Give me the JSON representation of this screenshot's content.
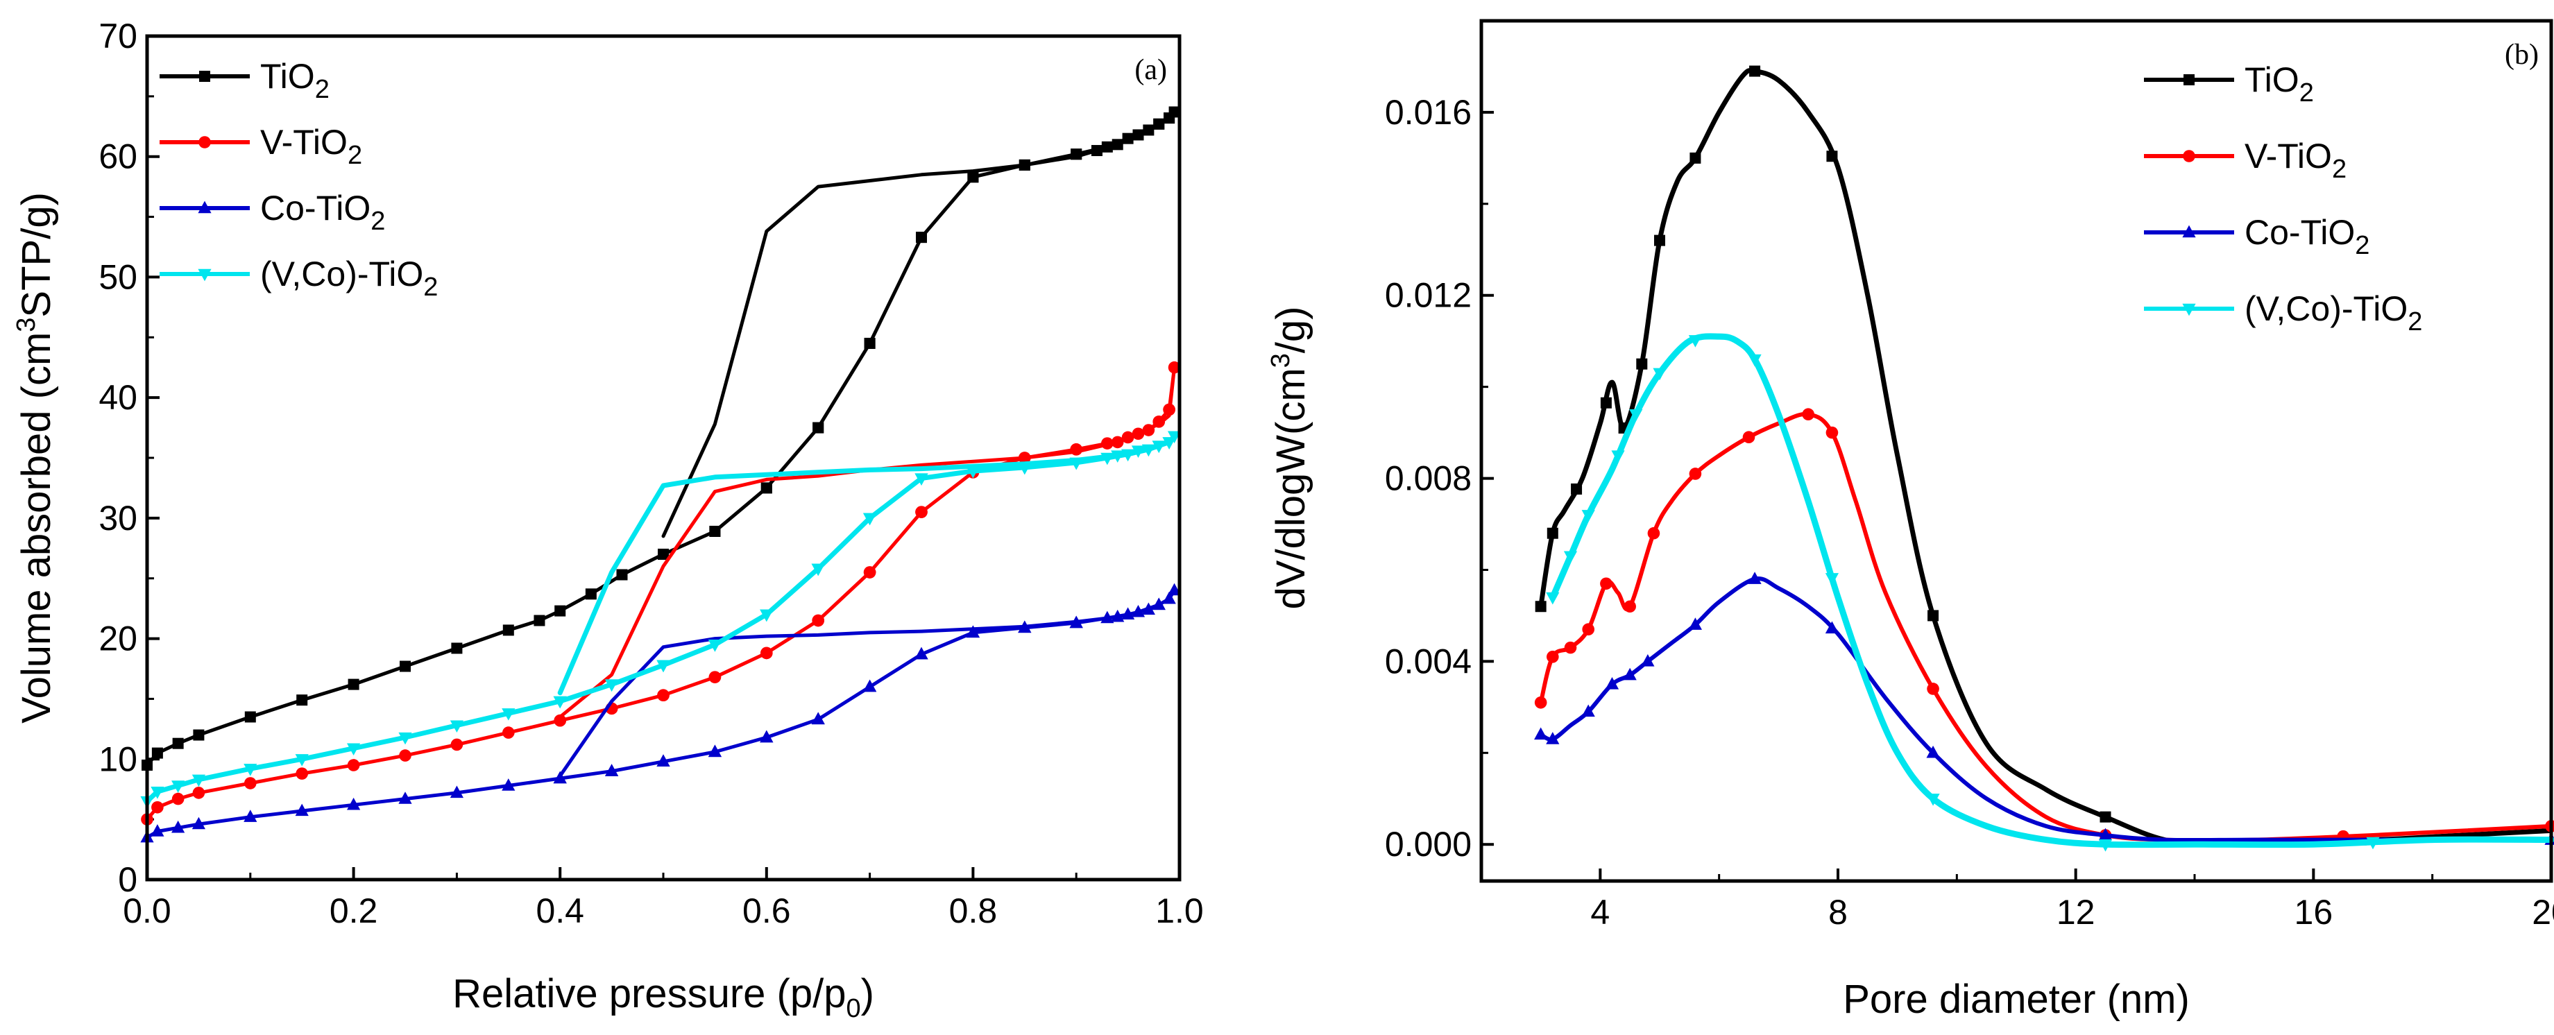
{
  "chart_data": [
    {
      "type": "line",
      "panel_label": "(a)",
      "xlabel": "Relative pressure (p/p",
      "xlabel_sub": "0",
      "xlabel_tail": ")",
      "ylabel": "Volume absorbed (cm",
      "ylabel_sup": "3",
      "ylabel_tail": "STP/g)",
      "xlim": [
        0,
        1.0
      ],
      "ylim": [
        0,
        70
      ],
      "xticks": [
        0.0,
        0.2,
        0.4,
        0.6,
        0.8,
        1.0
      ],
      "xtick_labels": [
        "0.0",
        "0.2",
        "0.4",
        "0.6",
        "0.8",
        "1.0"
      ],
      "yticks": [
        0,
        10,
        20,
        30,
        40,
        50,
        60,
        70
      ],
      "ytick_labels": [
        "0",
        "10",
        "20",
        "30",
        "40",
        "50",
        "60",
        "70"
      ],
      "legend_position": "top-left",
      "series": [
        {
          "name": "TiO",
          "name_sub": "2",
          "name_tail": "",
          "color": "#000000",
          "marker": "square",
          "x": [
            0.0,
            0.01,
            0.03,
            0.05,
            0.1,
            0.15,
            0.2,
            0.25,
            0.3,
            0.35,
            0.38,
            0.4,
            0.43,
            0.46,
            0.5,
            0.55,
            0.6,
            0.65,
            0.7,
            0.75,
            0.8,
            0.85,
            0.9,
            0.93,
            0.95,
            0.97,
            0.98,
            0.99,
            0.995,
            0.99,
            0.98,
            0.96,
            0.94,
            0.92,
            0.9,
            0.85,
            0.8,
            0.75,
            0.7,
            0.65,
            0.6,
            0.55,
            0.5
          ],
          "y": [
            9.5,
            10.5,
            11.3,
            12.0,
            13.5,
            14.9,
            16.2,
            17.7,
            19.2,
            20.7,
            21.5,
            22.3,
            23.7,
            25.3,
            27.0,
            28.9,
            32.5,
            37.5,
            44.5,
            53.3,
            58.3,
            59.3,
            60.2,
            60.8,
            61.5,
            62.2,
            62.7,
            63.2,
            63.7,
            63.2,
            62.7,
            61.8,
            61.0,
            60.5,
            60.0,
            59.3,
            58.8,
            58.5,
            58.0,
            57.5,
            53.8,
            37.8,
            28.5
          ]
        },
        {
          "name": "V-TiO",
          "name_sub": "2",
          "name_tail": "",
          "color": "#ff0000",
          "marker": "circle",
          "x": [
            0.0,
            0.01,
            0.03,
            0.05,
            0.1,
            0.15,
            0.2,
            0.25,
            0.3,
            0.35,
            0.4,
            0.45,
            0.5,
            0.55,
            0.6,
            0.65,
            0.7,
            0.75,
            0.8,
            0.85,
            0.9,
            0.93,
            0.95,
            0.97,
            0.98,
            0.99,
            0.995,
            0.99,
            0.98,
            0.96,
            0.94,
            0.9,
            0.85,
            0.8,
            0.75,
            0.7,
            0.65,
            0.6,
            0.55,
            0.5,
            0.45,
            0.4
          ],
          "y": [
            5.0,
            6.0,
            6.7,
            7.2,
            8.0,
            8.8,
            9.5,
            10.3,
            11.2,
            12.2,
            13.2,
            14.2,
            15.3,
            16.8,
            18.8,
            21.5,
            25.5,
            30.5,
            33.8,
            35.0,
            35.7,
            36.2,
            36.7,
            37.3,
            38.0,
            39.0,
            42.5,
            38.5,
            37.8,
            37.0,
            36.3,
            35.5,
            35.0,
            34.7,
            34.4,
            34.0,
            33.5,
            33.2,
            32.2,
            26.0,
            17.0,
            13.5
          ]
        },
        {
          "name": "Co-TiO",
          "name_sub": "2",
          "name_tail": "",
          "color": "#0000cc",
          "marker": "triangle-up",
          "x": [
            0.0,
            0.01,
            0.03,
            0.05,
            0.1,
            0.15,
            0.2,
            0.25,
            0.3,
            0.35,
            0.4,
            0.45,
            0.5,
            0.55,
            0.6,
            0.65,
            0.7,
            0.75,
            0.8,
            0.85,
            0.9,
            0.93,
            0.95,
            0.97,
            0.98,
            0.99,
            0.995,
            0.99,
            0.98,
            0.96,
            0.94,
            0.9,
            0.85,
            0.8,
            0.75,
            0.7,
            0.65,
            0.6,
            0.55,
            0.5,
            0.45,
            0.4
          ],
          "y": [
            3.5,
            4.0,
            4.3,
            4.6,
            5.2,
            5.7,
            6.2,
            6.7,
            7.2,
            7.8,
            8.4,
            9.0,
            9.8,
            10.6,
            11.8,
            13.3,
            16.0,
            18.7,
            20.5,
            20.9,
            21.3,
            21.7,
            22.0,
            22.4,
            22.8,
            23.3,
            24.0,
            23.3,
            22.8,
            22.2,
            21.8,
            21.4,
            21.0,
            20.8,
            20.6,
            20.5,
            20.3,
            20.2,
            20.0,
            19.3,
            14.8,
            8.6
          ]
        },
        {
          "name": "(V,Co)-TiO",
          "name_sub": "2",
          "name_tail": "",
          "color": "#00e5ee",
          "marker": "triangle-down",
          "x": [
            0.0,
            0.01,
            0.03,
            0.05,
            0.1,
            0.15,
            0.2,
            0.25,
            0.3,
            0.35,
            0.4,
            0.45,
            0.5,
            0.55,
            0.6,
            0.65,
            0.7,
            0.75,
            0.8,
            0.85,
            0.9,
            0.93,
            0.95,
            0.97,
            0.98,
            0.99,
            0.995,
            0.99,
            0.98,
            0.96,
            0.94,
            0.9,
            0.85,
            0.8,
            0.75,
            0.7,
            0.65,
            0.6,
            0.55,
            0.5,
            0.45,
            0.4
          ],
          "y": [
            6.5,
            7.3,
            7.8,
            8.3,
            9.2,
            10.0,
            10.9,
            11.8,
            12.8,
            13.8,
            14.8,
            16.2,
            17.8,
            19.5,
            22.0,
            25.8,
            30.0,
            33.3,
            33.9,
            34.2,
            34.6,
            35.0,
            35.3,
            35.7,
            36.0,
            36.3,
            36.8,
            36.3,
            36.0,
            35.6,
            35.2,
            34.8,
            34.5,
            34.3,
            34.1,
            34.0,
            33.8,
            33.6,
            33.4,
            32.7,
            25.5,
            15.5
          ]
        }
      ]
    },
    {
      "type": "line",
      "panel_label": "(b)",
      "xlabel": "Pore diameter (nm)",
      "ylabel": "dV/dlogW(cm",
      "ylabel_sup": "3",
      "ylabel_tail": "/g)",
      "xlim": [
        2,
        20
      ],
      "ylim": [
        -0.0008,
        0.018
      ],
      "xticks": [
        4,
        8,
        12,
        16,
        20
      ],
      "xtick_labels": [
        "4",
        "8",
        "12",
        "16",
        "20"
      ],
      "yticks": [
        0.0,
        0.004,
        0.008,
        0.012,
        0.016
      ],
      "ytick_labels": [
        "0.000",
        "0.004",
        "0.008",
        "0.012",
        "0.016"
      ],
      "legend_position": "top-right",
      "series": [
        {
          "name": "TiO",
          "name_sub": "2",
          "name_tail": "",
          "color": "#000000",
          "marker": "square",
          "x": [
            3.0,
            3.2,
            3.4,
            3.7,
            4.0,
            4.2,
            4.4,
            4.7,
            5.0,
            5.3,
            5.6,
            6.0,
            6.4,
            6.6,
            7.0,
            7.5,
            8.0,
            8.5,
            9.0,
            9.6,
            10.5,
            11.5,
            12.5,
            13.5,
            14.5,
            16.0,
            17.0,
            18.5,
            20.0
          ],
          "x_markers": [
            3.0,
            3.2,
            3.6,
            4.1,
            4.4,
            4.7,
            5.0,
            5.6,
            6.6,
            7.9,
            9.6,
            12.5,
            16.8
          ],
          "y": [
            0.0052,
            0.0068,
            0.0073,
            0.008,
            0.0092,
            0.0101,
            0.0091,
            0.0105,
            0.0132,
            0.0145,
            0.015,
            0.016,
            0.0168,
            0.0169,
            0.0167,
            0.016,
            0.0148,
            0.012,
            0.0085,
            0.005,
            0.0022,
            0.0012,
            0.0006,
            0.0001,
            0.0,
            0.0001,
            0.0001,
            0.0002,
            0.0003
          ]
        },
        {
          "name": "V-TiO",
          "name_sub": "2",
          "name_tail": "",
          "color": "#ff0000",
          "marker": "circle",
          "x": [
            3.0,
            3.2,
            3.5,
            3.8,
            4.1,
            4.3,
            4.5,
            4.9,
            5.2,
            5.6,
            6.0,
            6.5,
            7.0,
            7.5,
            7.9,
            8.3,
            8.8,
            9.6,
            10.5,
            11.5,
            12.5,
            13.5,
            15.0,
            17.0,
            20.0
          ],
          "x_markers": [
            3.0,
            3.2,
            3.5,
            3.8,
            4.1,
            4.5,
            4.9,
            5.6,
            6.5,
            7.5,
            7.9,
            9.6,
            12.5,
            16.5,
            20.0
          ],
          "y": [
            0.0031,
            0.0041,
            0.0043,
            0.0047,
            0.0057,
            0.0055,
            0.0052,
            0.0068,
            0.0075,
            0.0081,
            0.0085,
            0.0089,
            0.0092,
            0.0094,
            0.009,
            0.0075,
            0.0055,
            0.0034,
            0.0017,
            0.0006,
            0.0002,
            0.0001,
            0.0001,
            0.0002,
            0.0004
          ]
        },
        {
          "name": "Co-TiO",
          "name_sub": "2",
          "name_tail": "",
          "color": "#0000cc",
          "marker": "triangle-up",
          "x": [
            3.0,
            3.2,
            3.5,
            3.8,
            4.2,
            4.5,
            4.8,
            5.2,
            5.6,
            6.0,
            6.6,
            7.0,
            7.5,
            8.0,
            8.8,
            9.6,
            10.5,
            11.5,
            12.5,
            13.5,
            15.0,
            17.0,
            20.0
          ],
          "x_markers": [
            3.0,
            3.2,
            3.8,
            4.2,
            4.5,
            4.8,
            5.6,
            6.6,
            7.9,
            9.6,
            12.5,
            20.0
          ],
          "y": [
            0.0024,
            0.0023,
            0.0026,
            0.0029,
            0.0035,
            0.0037,
            0.004,
            0.0044,
            0.0048,
            0.0053,
            0.0058,
            0.0056,
            0.0052,
            0.0046,
            0.0032,
            0.002,
            0.001,
            0.0004,
            0.0002,
            0.0001,
            0.0001,
            0.0001,
            0.0001
          ]
        },
        {
          "name": "(V,Co)-TiO",
          "name_sub": "2",
          "name_tail": "",
          "color": "#00e5ee",
          "marker": "triangle-down",
          "x": [
            3.2,
            3.5,
            3.8,
            4.2,
            4.6,
            5.0,
            5.5,
            6.0,
            6.3,
            6.6,
            7.0,
            7.5,
            8.0,
            8.5,
            9.0,
            9.6,
            10.5,
            11.5,
            12.5,
            14.0,
            16.0,
            18.0,
            20.0
          ],
          "x_markers": [
            3.2,
            3.5,
            3.8,
            4.3,
            4.6,
            5.0,
            5.6,
            6.6,
            7.9,
            9.6,
            12.5,
            17.0
          ],
          "y": [
            0.0054,
            0.0063,
            0.0072,
            0.0082,
            0.0094,
            0.0103,
            0.011,
            0.0111,
            0.011,
            0.0106,
            0.0094,
            0.0075,
            0.0054,
            0.0035,
            0.002,
            0.001,
            0.0004,
            0.0001,
            0.0,
            0.0,
            0.0,
            0.0001,
            0.0001
          ]
        }
      ]
    }
  ]
}
